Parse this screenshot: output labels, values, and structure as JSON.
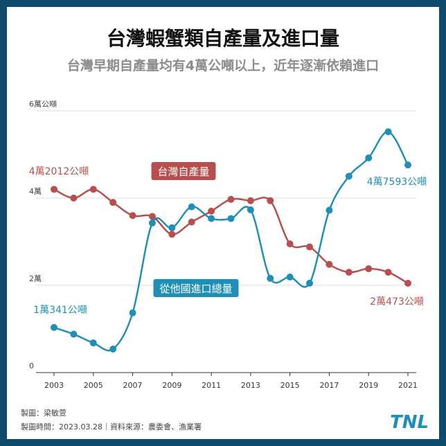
{
  "header": {
    "title": "台灣蝦蟹類自產量及進口量",
    "subtitle": "台灣早期自產量均有4萬公噸以上，近年逐漸依賴進口"
  },
  "footer": {
    "credit": "製圖：梁敏萱",
    "meta": "製圖時間：2023.03.28｜資料來源：農委會、漁業署"
  },
  "logo": {
    "text": "TNL"
  },
  "colors": {
    "domestic": "#b84f4f",
    "import": "#1f8fb8",
    "background": "#0d4a6b"
  },
  "chart_data": {
    "type": "line",
    "x": [
      2003,
      2004,
      2005,
      2006,
      2007,
      2008,
      2009,
      2010,
      2011,
      2012,
      2013,
      2014,
      2015,
      2016,
      2017,
      2018,
      2019,
      2020,
      2021
    ],
    "x_ticks": [
      "2003",
      "2005",
      "2007",
      "2009",
      "2011",
      "2013",
      "2015",
      "2017",
      "2019",
      "2021"
    ],
    "y_ticks": [
      "0",
      "2萬",
      "4萬",
      "6萬公噸"
    ],
    "ylim": [
      0,
      60000
    ],
    "grid": true,
    "series": [
      {
        "name": "台灣自產量",
        "values": [
          42012,
          40000,
          42000,
          39000,
          36000,
          35800,
          31700,
          34500,
          37000,
          39700,
          39400,
          39400,
          29500,
          28800,
          24800,
          23000,
          23800,
          23000,
          20473
        ]
      },
      {
        "name": "從他國進口總量",
        "values": [
          10341,
          8800,
          6800,
          5400,
          13700,
          34300,
          33200,
          38000,
          35300,
          35300,
          37300,
          21600,
          21900,
          20500,
          37200,
          45000,
          49200,
          55200,
          47593
        ]
      }
    ],
    "annotations": [
      {
        "text": "4萬2012公噸",
        "series": 0,
        "x": 2003
      },
      {
        "text": "2萬473公噸",
        "series": 0,
        "x": 2021
      },
      {
        "text": "1萬341公噸",
        "series": 1,
        "x": 2003
      },
      {
        "text": "4萬7593公噸",
        "series": 1,
        "x": 2021
      }
    ]
  }
}
